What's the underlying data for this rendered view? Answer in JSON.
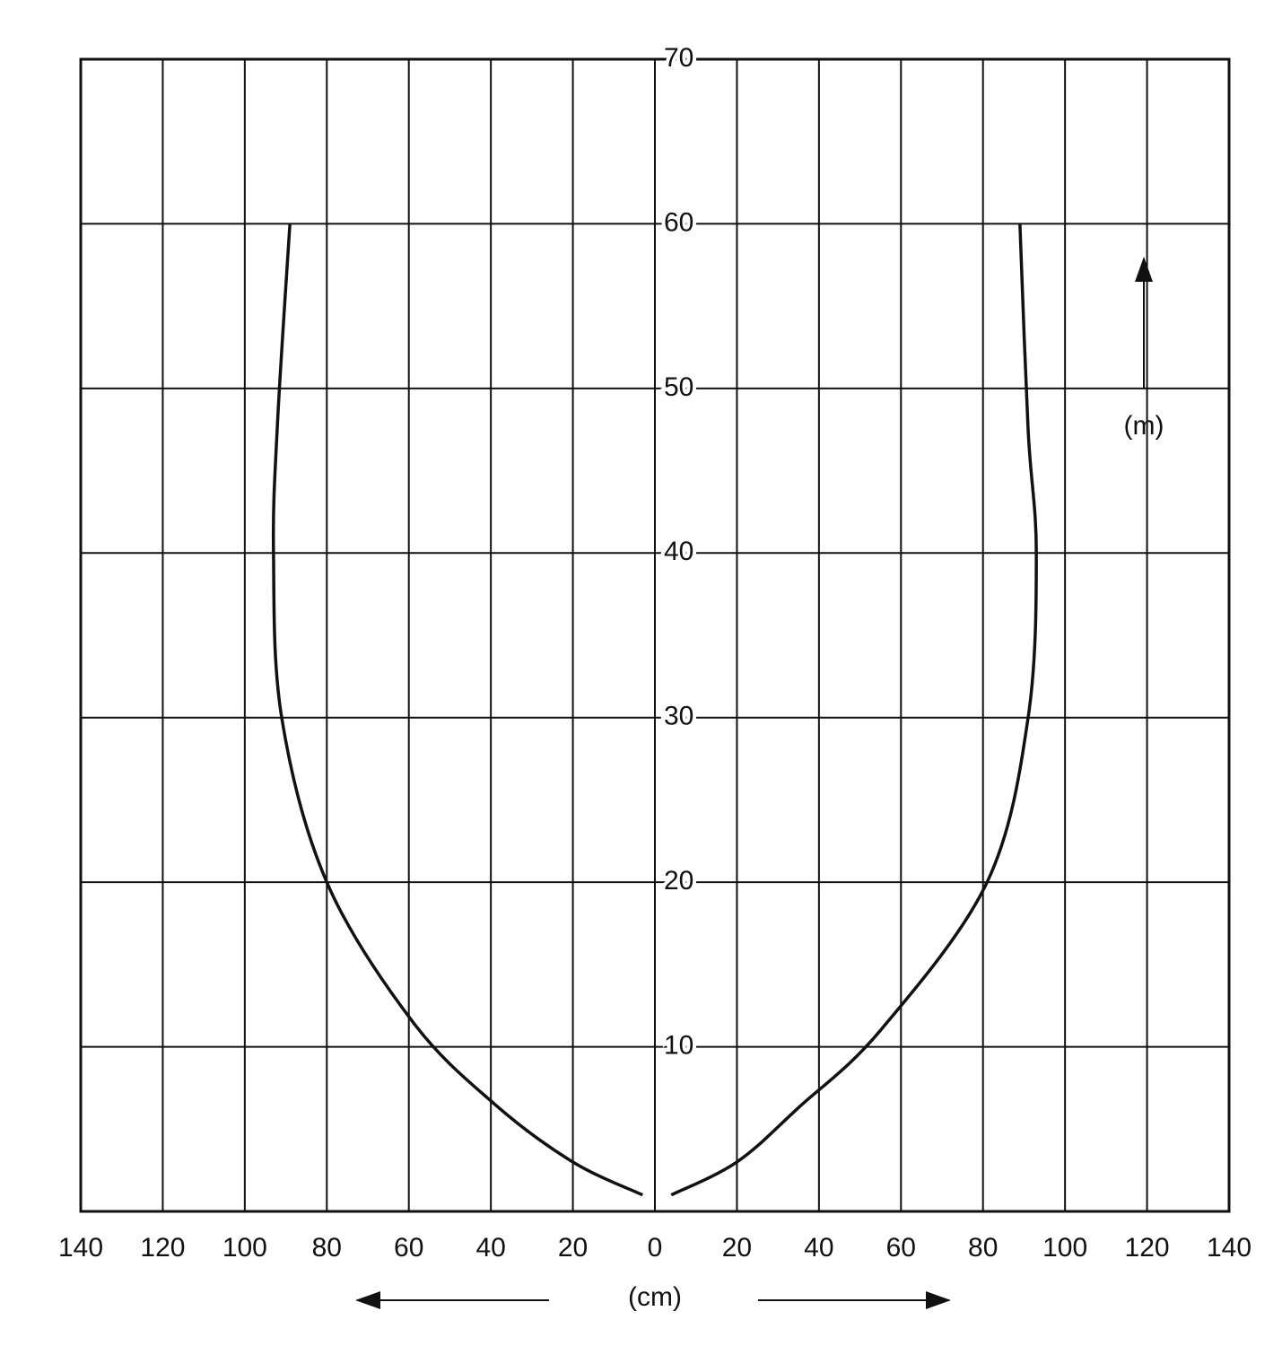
{
  "chart_data": {
    "type": "line",
    "x_label": "(cm)",
    "y_label": "(m)",
    "xlim": [
      -140,
      140
    ],
    "xticks": [
      {
        "value": -140,
        "label": "140"
      },
      {
        "value": -120,
        "label": "120"
      },
      {
        "value": -100,
        "label": "100"
      },
      {
        "value": -80,
        "label": "80"
      },
      {
        "value": -60,
        "label": "60"
      },
      {
        "value": -40,
        "label": "40"
      },
      {
        "value": -20,
        "label": "20"
      },
      0,
      20,
      40,
      60,
      80,
      100,
      120,
      140
    ],
    "ylim": [
      0,
      70
    ],
    "yticks": [
      10,
      20,
      30,
      40,
      50,
      60,
      70
    ],
    "grid": true,
    "series": [
      {
        "color": "#111111",
        "x": [
          -3,
          -20,
          -39,
          -59,
          -80,
          -91,
          -93,
          -92,
          -89
        ],
        "values": [
          1,
          3,
          6.5,
          11.5,
          20,
          30,
          40,
          48,
          60
        ]
      },
      {
        "color": "#111111",
        "x": [
          4,
          20,
          35,
          55,
          81,
          91,
          93,
          91,
          89
        ],
        "values": [
          1,
          3,
          6.3,
          11,
          20,
          30,
          40,
          47.5,
          60
        ]
      }
    ]
  }
}
